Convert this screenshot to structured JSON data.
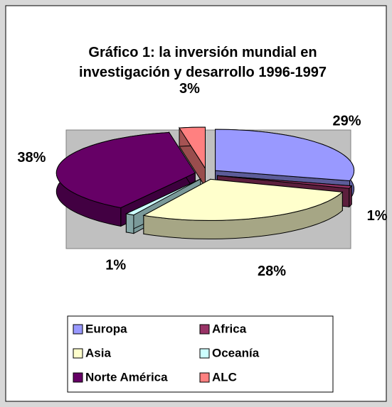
{
  "chart_data": {
    "type": "pie",
    "title": "Gráfico 1: la inversión mundial en investigación y desarrollo 1996-1997",
    "categories": [
      "Europa",
      "Africa",
      "Asia",
      "Oceanía",
      "Norte América",
      "ALC"
    ],
    "values": [
      29,
      1,
      28,
      1,
      38,
      3
    ],
    "value_labels": [
      "29%",
      "1%",
      "28%",
      "1%",
      "38%",
      "3%"
    ],
    "colors": [
      "#9999ff",
      "#993366",
      "#ffffcc",
      "#ccffff",
      "#660066",
      "#ff8080"
    ],
    "legend": "bottom"
  }
}
